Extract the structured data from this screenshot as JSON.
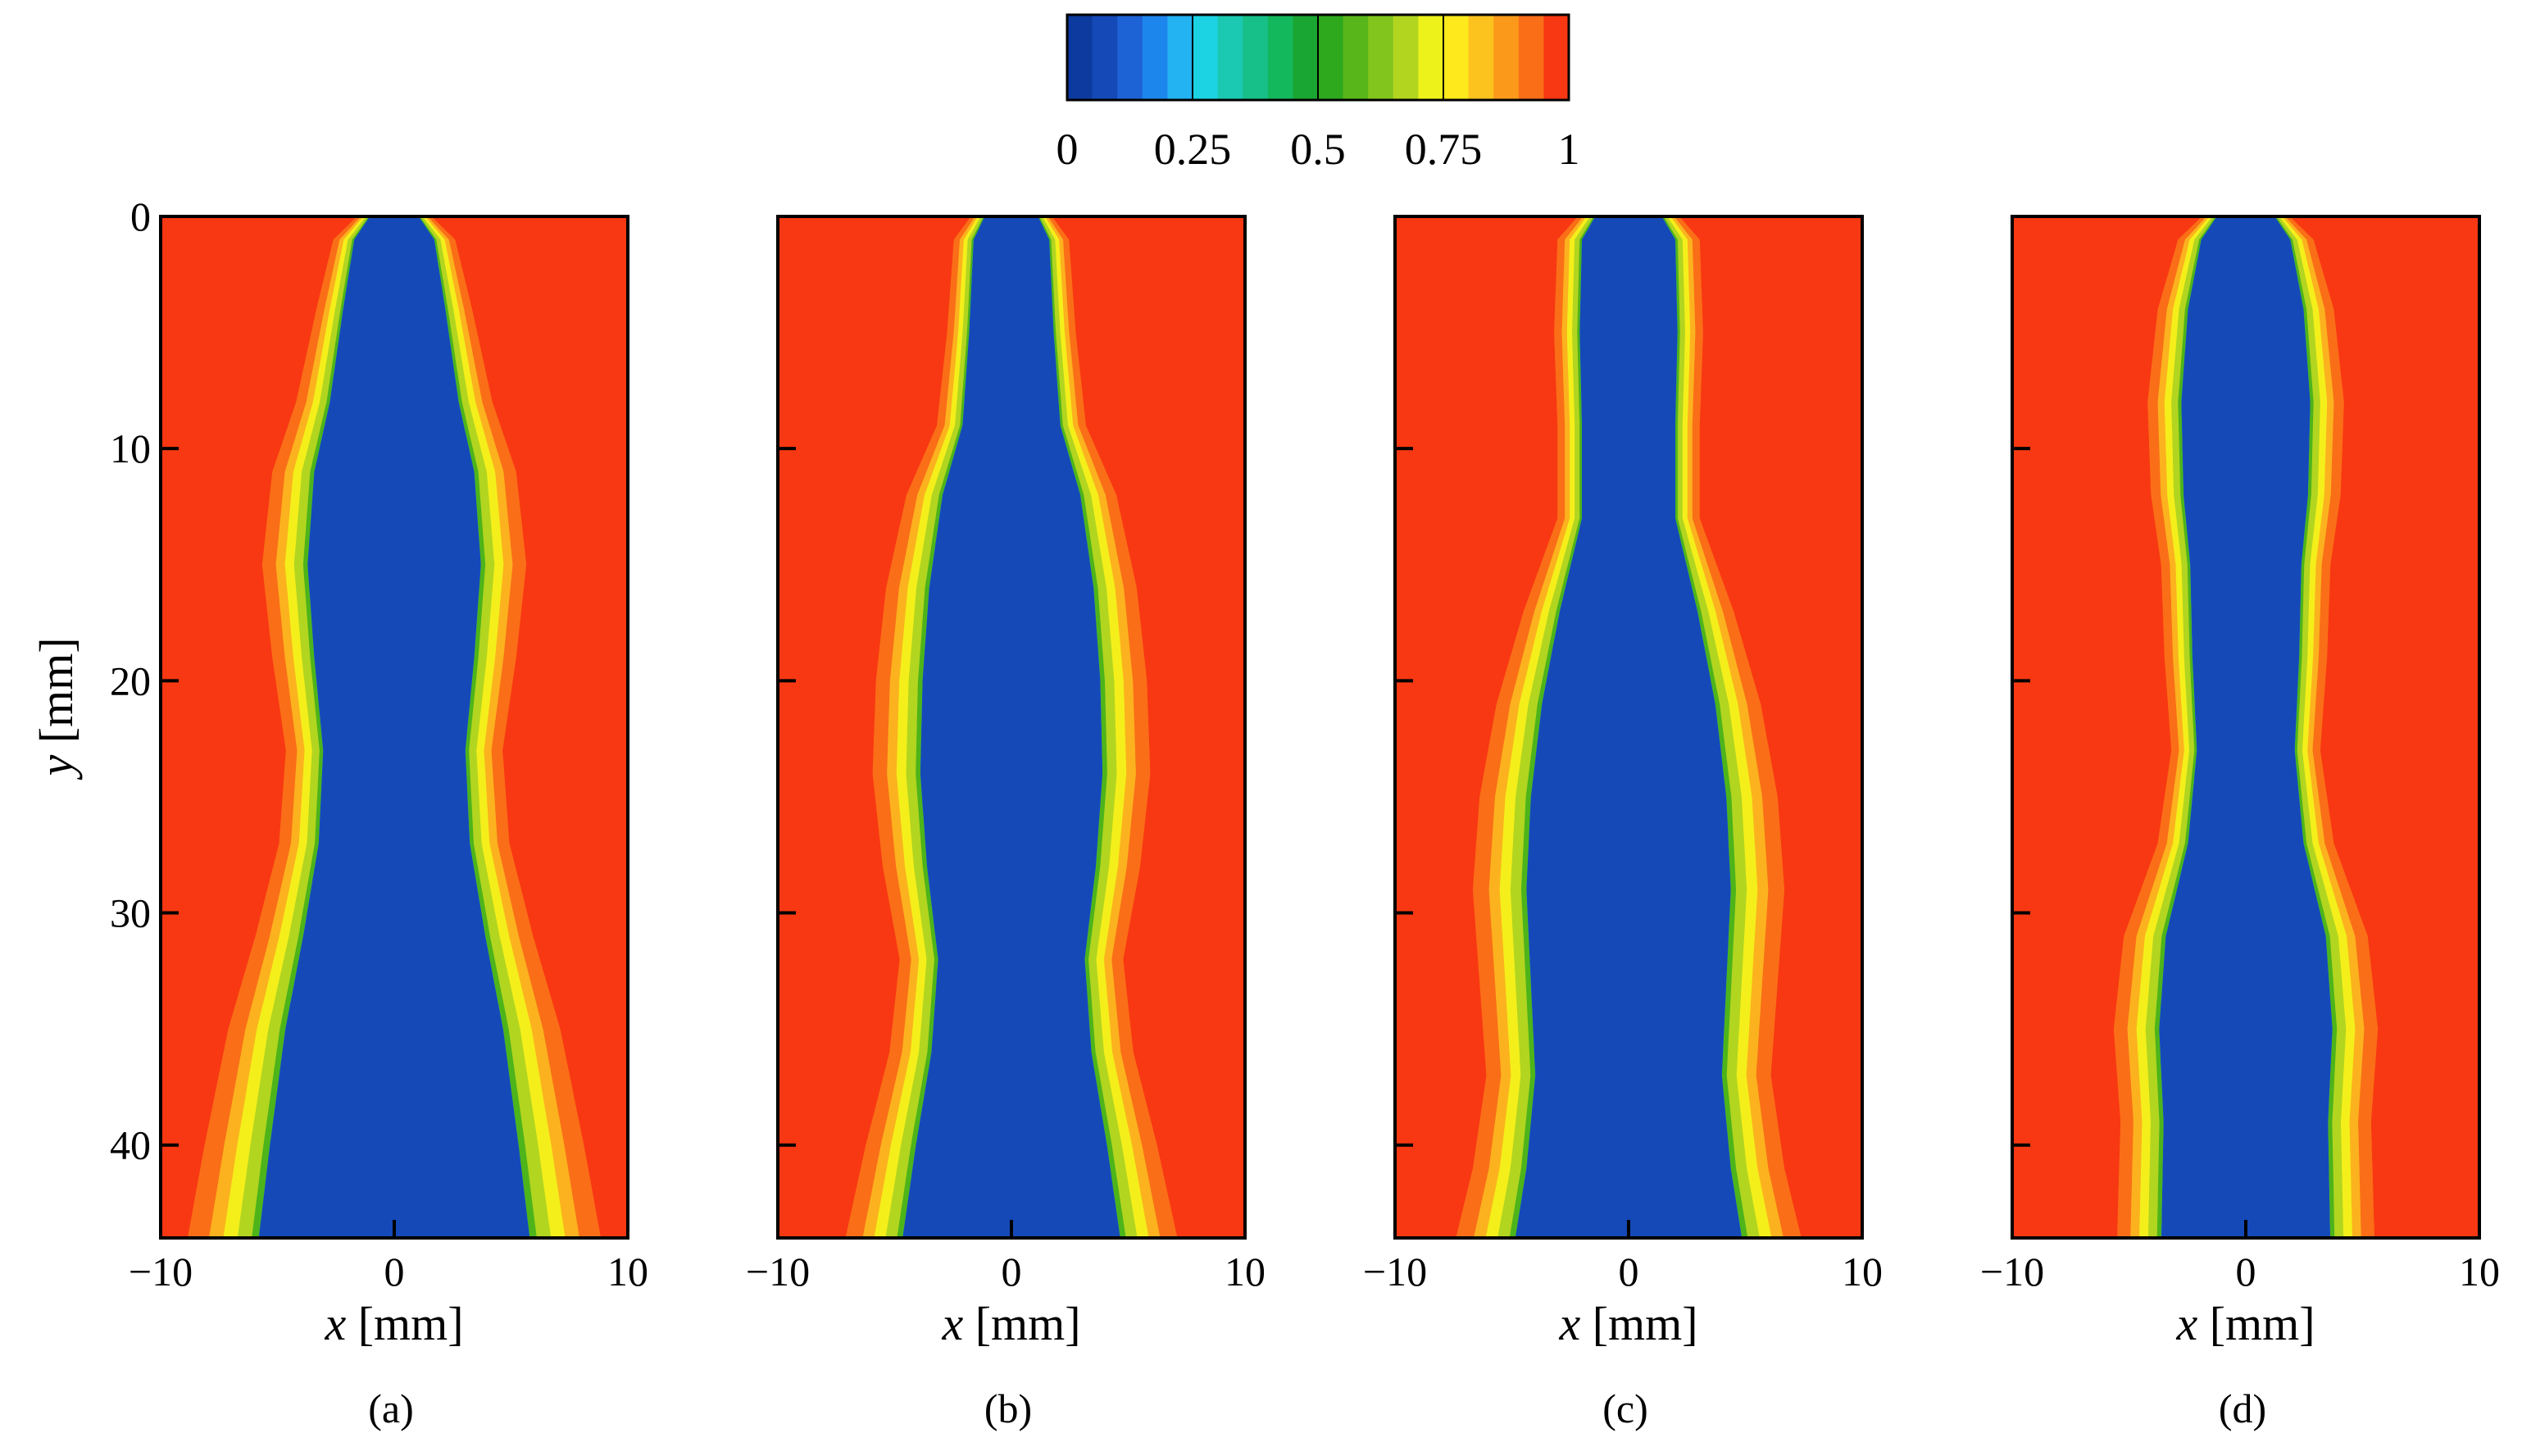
{
  "chart_data": {
    "type": "heatmap",
    "colorbar": {
      "min": 0,
      "max": 1,
      "levels": 20,
      "ticks": [
        0,
        0.25,
        0.5,
        0.75,
        1
      ],
      "tick_labels": [
        "0",
        "0.25",
        "0.5",
        "0.75",
        "1"
      ],
      "colors": [
        "#0d3a9e",
        "#1549b8",
        "#1e63d6",
        "#1d86ec",
        "#23b2f2",
        "#1bd3e2",
        "#1bc9b2",
        "#17c088",
        "#14b85c",
        "#1aa632",
        "#2ea81c",
        "#58b61a",
        "#82c51d",
        "#b2d520",
        "#ecf21a",
        "#fde91c",
        "#fcc21e",
        "#fb9a1a",
        "#fa6e17",
        "#f83812"
      ]
    },
    "y_axis": {
      "label_var": "y",
      "label_unit": "[mm]",
      "range": [
        0,
        44
      ],
      "ticks": [
        0,
        10,
        20,
        30,
        40
      ],
      "tick_labels": [
        "0",
        "10",
        "20",
        "30",
        "40"
      ],
      "inverted": true
    },
    "x_axis": {
      "label_var": "x",
      "label_unit": "[mm]",
      "range": [
        -10,
        10
      ],
      "ticks": [
        -10,
        0,
        10
      ],
      "tick_labels": [
        "−10",
        "0",
        "10"
      ]
    },
    "panels": [
      {
        "tag": "(a)",
        "profile": [
          [
            0,
            1.1,
            0.08
          ],
          [
            1,
            1.8,
            0.1
          ],
          [
            4,
            2.3,
            0.1
          ],
          [
            8,
            2.9,
            0.07
          ],
          [
            11,
            3.6,
            0.05
          ],
          [
            15,
            3.9,
            0.02
          ],
          [
            19,
            3.6,
            0.15
          ],
          [
            23,
            3.2,
            0.3
          ],
          [
            27,
            3.4,
            0.4
          ],
          [
            31,
            4.1,
            0.38
          ],
          [
            35,
            4.9,
            0.32
          ],
          [
            40,
            5.6,
            0.28
          ],
          [
            44,
            6.1,
            0.27
          ]
        ]
      },
      {
        "tag": "(b)",
        "profile": [
          [
            0,
            1.2,
            0.1
          ],
          [
            1,
            1.7,
            0.12
          ],
          [
            5,
            1.9,
            0.15
          ],
          [
            9,
            2.2,
            0.2
          ],
          [
            12,
            3.1,
            0.26
          ],
          [
            16,
            3.7,
            0.2
          ],
          [
            20,
            4.0,
            0.03
          ],
          [
            24,
            4.1,
            0.02
          ],
          [
            28,
            3.8,
            0.1
          ],
          [
            32,
            3.3,
            0.28
          ],
          [
            36,
            3.6,
            0.35
          ],
          [
            40,
            4.3,
            0.32
          ],
          [
            44,
            4.9,
            0.3
          ]
        ]
      },
      {
        "tag": "(c)",
        "profile": [
          [
            0,
            1.5,
            0.06
          ],
          [
            1,
            2.1,
            0.07
          ],
          [
            5,
            2.2,
            0.1
          ],
          [
            9,
            2.1,
            0.25
          ],
          [
            13,
            2.1,
            0.32
          ],
          [
            17,
            3.1,
            0.35
          ],
          [
            21,
            3.9,
            0.3
          ],
          [
            25,
            4.4,
            0.12
          ],
          [
            29,
            4.6,
            0.02
          ],
          [
            33,
            4.4,
            0.12
          ],
          [
            37,
            4.2,
            0.27
          ],
          [
            41,
            4.6,
            0.33
          ],
          [
            44,
            5.1,
            0.33
          ]
        ]
      },
      {
        "tag": "(d)",
        "profile": [
          [
            0,
            1.3,
            0.04
          ],
          [
            1,
            2.0,
            0.05
          ],
          [
            4,
            2.6,
            0.03
          ],
          [
            8,
            2.9,
            0.03
          ],
          [
            12,
            2.8,
            0.05
          ],
          [
            15,
            2.5,
            0.25
          ],
          [
            19,
            2.4,
            0.38
          ],
          [
            23,
            2.2,
            0.42
          ],
          [
            27,
            2.6,
            0.4
          ],
          [
            31,
            3.6,
            0.3
          ],
          [
            35,
            3.9,
            0.15
          ],
          [
            39,
            3.7,
            0.12
          ],
          [
            44,
            3.8,
            0.16
          ]
        ]
      }
    ]
  }
}
